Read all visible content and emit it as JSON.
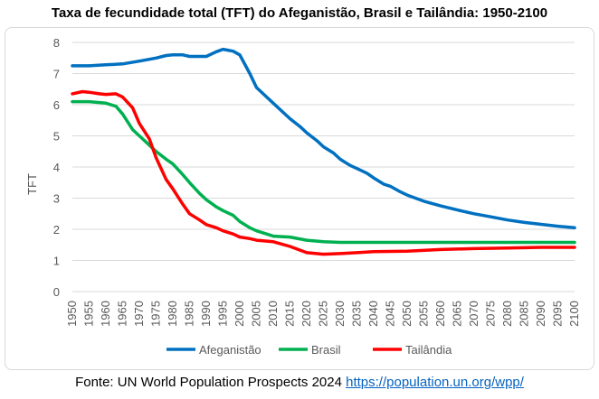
{
  "title": "Taxa de fecundidade total (TFT) do Afeganistão, Brasil e Tailândia: 1950-2100",
  "footer": {
    "text": "Fonte: UN World Population Prospects 2024 ",
    "link": "https://population.un.org/wpp/"
  },
  "chart_data": {
    "type": "line",
    "title": "Taxa de fecundidade total (TFT) do Afeganistão, Brasil e Tailândia: 1950-2100",
    "xlabel": "",
    "ylabel": "TFT",
    "xlim": [
      1950,
      2100
    ],
    "ylim": [
      0,
      8
    ],
    "yticks": [
      0,
      1,
      2,
      3,
      4,
      5,
      6,
      7,
      8
    ],
    "xticks": [
      1950,
      1955,
      1960,
      1965,
      1970,
      1975,
      1980,
      1985,
      1990,
      1995,
      2000,
      2005,
      2010,
      2015,
      2020,
      2025,
      2030,
      2035,
      2040,
      2045,
      2050,
      2055,
      2060,
      2065,
      2070,
      2075,
      2080,
      2085,
      2090,
      2095,
      2100
    ],
    "grid": "horizontal",
    "legend": "bottom",
    "series": [
      {
        "name": "Afeganistão",
        "color": "#0070c0",
        "x": [
          1950,
          1955,
          1960,
          1965,
          1970,
          1975,
          1978,
          1980,
          1983,
          1985,
          1988,
          1990,
          1993,
          1995,
          1998,
          2000,
          2003,
          2005,
          2008,
          2010,
          2013,
          2015,
          2018,
          2020,
          2023,
          2025,
          2028,
          2030,
          2033,
          2035,
          2038,
          2040,
          2043,
          2045,
          2048,
          2050,
          2055,
          2060,
          2065,
          2070,
          2075,
          2080,
          2085,
          2090,
          2095,
          2100
        ],
        "y": [
          7.25,
          7.25,
          7.28,
          7.31,
          7.4,
          7.5,
          7.58,
          7.6,
          7.6,
          7.55,
          7.55,
          7.55,
          7.7,
          7.78,
          7.72,
          7.6,
          7.0,
          6.55,
          6.25,
          6.05,
          5.75,
          5.55,
          5.3,
          5.1,
          4.85,
          4.65,
          4.45,
          4.25,
          4.05,
          3.95,
          3.8,
          3.65,
          3.45,
          3.38,
          3.2,
          3.1,
          2.9,
          2.75,
          2.62,
          2.5,
          2.4,
          2.3,
          2.22,
          2.16,
          2.1,
          2.05
        ]
      },
      {
        "name": "Brasil",
        "color": "#00b050",
        "x": [
          1950,
          1955,
          1960,
          1963,
          1965,
          1968,
          1970,
          1973,
          1975,
          1978,
          1980,
          1983,
          1985,
          1988,
          1990,
          1993,
          1995,
          1998,
          2000,
          2003,
          2005,
          2008,
          2010,
          2015,
          2020,
          2025,
          2030,
          2040,
          2050,
          2060,
          2070,
          2080,
          2090,
          2100
        ],
        "y": [
          6.1,
          6.1,
          6.05,
          5.95,
          5.7,
          5.2,
          5.0,
          4.7,
          4.5,
          4.25,
          4.1,
          3.75,
          3.5,
          3.15,
          2.95,
          2.72,
          2.6,
          2.45,
          2.25,
          2.05,
          1.95,
          1.85,
          1.78,
          1.75,
          1.65,
          1.6,
          1.58,
          1.58,
          1.58,
          1.58,
          1.58,
          1.58,
          1.58,
          1.58
        ]
      },
      {
        "name": "Tailândia",
        "color": "#ff0000",
        "x": [
          1950,
          1953,
          1955,
          1958,
          1960,
          1963,
          1965,
          1968,
          1970,
          1973,
          1975,
          1978,
          1980,
          1983,
          1985,
          1988,
          1990,
          1993,
          1995,
          1998,
          2000,
          2003,
          2005,
          2010,
          2015,
          2020,
          2025,
          2030,
          2035,
          2040,
          2050,
          2060,
          2070,
          2080,
          2090,
          2100
        ],
        "y": [
          6.35,
          6.42,
          6.4,
          6.35,
          6.33,
          6.35,
          6.25,
          5.9,
          5.4,
          4.9,
          4.3,
          3.6,
          3.3,
          2.8,
          2.5,
          2.3,
          2.15,
          2.05,
          1.95,
          1.85,
          1.75,
          1.7,
          1.65,
          1.6,
          1.45,
          1.25,
          1.2,
          1.22,
          1.25,
          1.28,
          1.3,
          1.35,
          1.38,
          1.4,
          1.42,
          1.42
        ]
      }
    ]
  }
}
